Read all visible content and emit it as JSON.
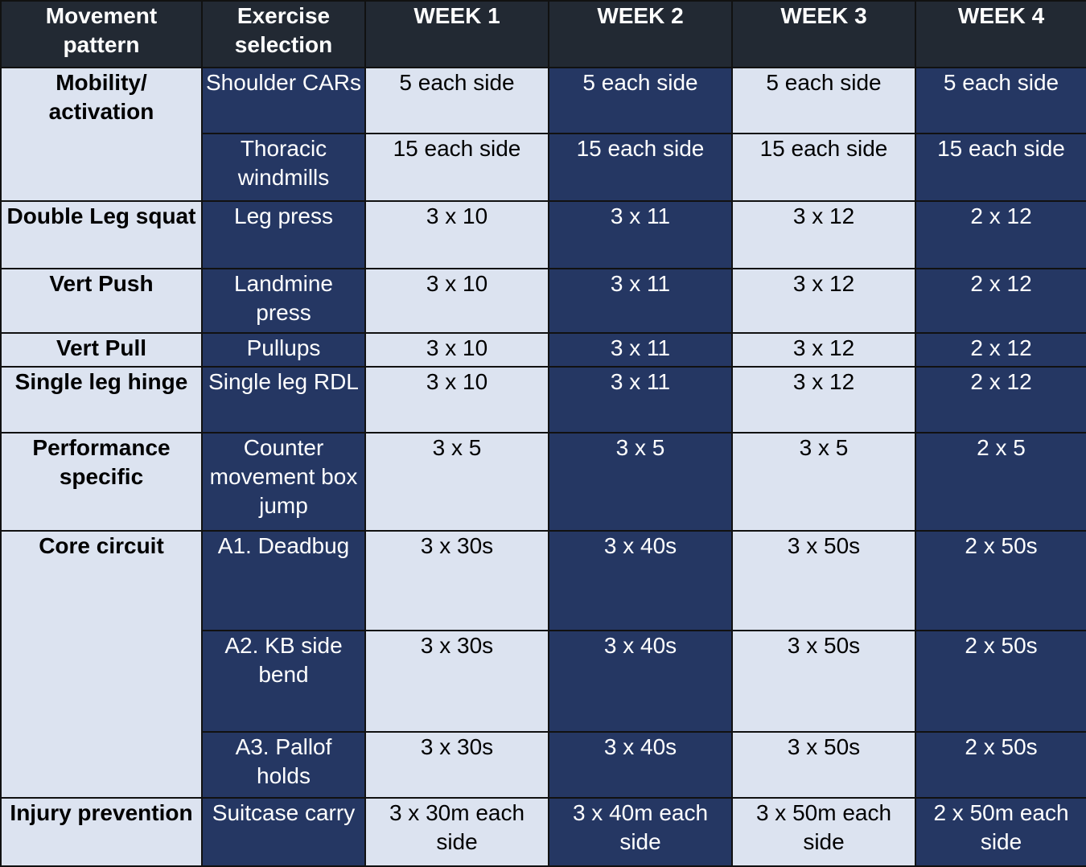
{
  "headers": [
    "Movement pattern",
    "Exercise selection",
    "WEEK 1",
    "WEEK 2",
    "WEEK 3",
    "WEEK 4"
  ],
  "rows": [
    {
      "pattern": "Mobility/ activation",
      "exercise": "Shoulder CARs",
      "weeks": [
        "5 each side",
        "5 each side",
        "5 each side",
        "5 each side"
      ]
    },
    {
      "exercise": "Thoracic windmills",
      "weeks": [
        "15 each side",
        "15 each side",
        "15 each side",
        "15 each side"
      ]
    },
    {
      "pattern": "Double Leg squat",
      "exercise": "Leg press",
      "weeks": [
        "3 x 10",
        "3 x 11",
        "3 x 12",
        "2 x 12"
      ]
    },
    {
      "pattern": "Vert Push",
      "exercise": "Landmine press",
      "weeks": [
        "3 x 10",
        "3 x 11",
        "3 x 12",
        "2 x 12"
      ]
    },
    {
      "pattern": "Vert Pull",
      "exercise": "Pullups",
      "weeks": [
        "3 x 10",
        "3 x 11",
        "3 x 12",
        "2 x 12"
      ]
    },
    {
      "pattern": "Single leg hinge",
      "exercise": "Single leg RDL",
      "weeks": [
        "3 x 10",
        "3 x 11",
        "3 x 12",
        "2 x 12"
      ]
    },
    {
      "pattern": "Performance specific",
      "exercise": "Counter movement box jump",
      "weeks": [
        "3 x 5",
        "3 x 5",
        "3 x 5",
        "2 x 5"
      ]
    },
    {
      "pattern": "Core circuit",
      "exercise": "A1. Deadbug",
      "weeks": [
        "3 x 30s",
        "3 x 40s",
        "3 x 50s",
        "2 x 50s"
      ]
    },
    {
      "exercise": "A2. KB side bend",
      "weeks": [
        "3 x 30s",
        "3 x 40s",
        "3 x 50s",
        "2 x 50s"
      ]
    },
    {
      "exercise": "A3. Pallof holds",
      "weeks": [
        "3 x 30s",
        "3 x 40s",
        "3 x 50s",
        "2 x 50s"
      ]
    },
    {
      "pattern": "Injury prevention",
      "exercise": "Suitcase carry",
      "weeks": [
        "3 x 30m each side",
        "3 x 40m each side",
        "3 x 50m each side",
        "2 x 50m each side"
      ]
    }
  ]
}
